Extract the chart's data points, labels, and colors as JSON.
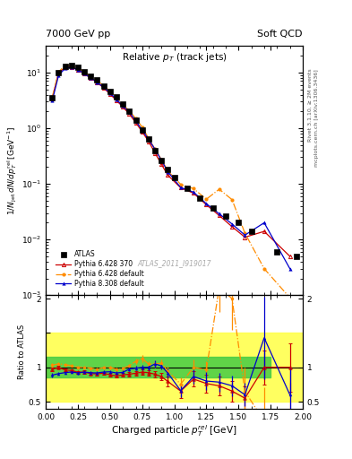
{
  "title_left": "7000 GeV pp",
  "title_right": "Soft QCD",
  "plot_title": "Relative $p_T$ (track jets)",
  "xlabel": "Charged particle $p_T^{rel}$ [GeV]",
  "ylabel_main": "$1/N_{jet}\\,dN/dp_T^{rel}\\,[GeV^{-1}]$",
  "ylabel_ratio": "Ratio to ATLAS",
  "right_label1": "Rivet 3.1.10, ≥ 2M events",
  "right_label2": "mcplots.cern.ch [arXiv:1306.3436]",
  "watermark": "ATLAS_2011_I919017",
  "atlas_x": [
    0.05,
    0.1,
    0.15,
    0.2,
    0.25,
    0.3,
    0.35,
    0.4,
    0.45,
    0.5,
    0.55,
    0.6,
    0.65,
    0.7,
    0.75,
    0.8,
    0.85,
    0.9,
    0.95,
    1.0,
    1.1,
    1.2,
    1.3,
    1.4,
    1.5,
    1.6,
    1.8,
    1.95
  ],
  "atlas_y": [
    3.5,
    9.8,
    12.8,
    13.2,
    12.2,
    10.2,
    8.7,
    7.3,
    5.8,
    4.6,
    3.6,
    2.7,
    2.0,
    1.38,
    0.93,
    0.63,
    0.4,
    0.26,
    0.18,
    0.13,
    0.082,
    0.055,
    0.037,
    0.026,
    0.02,
    0.014,
    0.006,
    0.005
  ],
  "py6_370_x": [
    0.05,
    0.1,
    0.15,
    0.2,
    0.25,
    0.3,
    0.35,
    0.4,
    0.45,
    0.5,
    0.55,
    0.6,
    0.65,
    0.7,
    0.75,
    0.8,
    0.85,
    0.9,
    0.95,
    1.05,
    1.15,
    1.25,
    1.35,
    1.45,
    1.55,
    1.7,
    1.9
  ],
  "py6_370_y": [
    3.4,
    9.8,
    12.3,
    12.6,
    11.3,
    9.5,
    7.9,
    6.6,
    5.3,
    4.1,
    3.15,
    2.4,
    1.8,
    1.26,
    0.865,
    0.58,
    0.36,
    0.225,
    0.143,
    0.085,
    0.068,
    0.042,
    0.027,
    0.017,
    0.011,
    0.014,
    0.005
  ],
  "py6_def_x": [
    0.05,
    0.1,
    0.15,
    0.2,
    0.25,
    0.3,
    0.35,
    0.4,
    0.45,
    0.5,
    0.55,
    0.6,
    0.65,
    0.7,
    0.75,
    0.8,
    0.85,
    0.9,
    0.95,
    1.05,
    1.15,
    1.25,
    1.35,
    1.45,
    1.55,
    1.7,
    1.9
  ],
  "py6_def_y": [
    3.6,
    10.3,
    13.3,
    13.5,
    12.2,
    10.2,
    8.6,
    7.1,
    5.8,
    4.6,
    3.5,
    2.65,
    2.05,
    1.5,
    1.05,
    0.66,
    0.42,
    0.275,
    0.17,
    0.098,
    0.082,
    0.053,
    0.08,
    0.052,
    0.013,
    0.003,
    0.0009
  ],
  "py8_def_x": [
    0.05,
    0.1,
    0.15,
    0.2,
    0.25,
    0.3,
    0.35,
    0.4,
    0.45,
    0.5,
    0.55,
    0.6,
    0.65,
    0.7,
    0.75,
    0.8,
    0.85,
    0.9,
    0.95,
    1.05,
    1.15,
    1.25,
    1.35,
    1.45,
    1.55,
    1.7,
    1.9
  ],
  "py8_def_y": [
    3.1,
    8.9,
    11.8,
    12.3,
    11.2,
    9.5,
    8.0,
    6.7,
    5.4,
    4.3,
    3.3,
    2.5,
    1.95,
    1.36,
    0.93,
    0.63,
    0.42,
    0.265,
    0.165,
    0.086,
    0.071,
    0.044,
    0.029,
    0.019,
    0.012,
    0.02,
    0.003
  ],
  "ratio_py6_370_x": [
    0.05,
    0.1,
    0.15,
    0.2,
    0.25,
    0.3,
    0.35,
    0.4,
    0.45,
    0.5,
    0.55,
    0.6,
    0.65,
    0.7,
    0.75,
    0.8,
    0.85,
    0.9,
    0.95,
    1.05,
    1.15,
    1.25,
    1.35,
    1.45,
    1.55,
    1.7,
    1.9
  ],
  "ratio_py6_370": [
    0.97,
    1.0,
    0.96,
    0.955,
    0.926,
    0.931,
    0.908,
    0.904,
    0.914,
    0.891,
    0.875,
    0.889,
    0.9,
    0.913,
    0.93,
    0.921,
    0.9,
    0.865,
    0.794,
    0.654,
    0.829,
    0.764,
    0.73,
    0.654,
    0.55,
    1.0,
    1.0
  ],
  "ratio_py6_def_x": [
    0.05,
    0.1,
    0.15,
    0.2,
    0.25,
    0.3,
    0.35,
    0.4,
    0.45,
    0.5,
    0.55,
    0.6,
    0.65,
    0.7,
    0.75,
    0.8,
    0.85,
    0.9,
    0.95,
    1.05,
    1.15,
    1.25,
    1.35,
    1.45,
    1.55,
    1.7,
    1.9
  ],
  "ratio_py6_def": [
    1.03,
    1.051,
    1.039,
    1.023,
    1.0,
    1.0,
    0.989,
    0.973,
    0.997,
    1.0,
    0.972,
    0.981,
    1.025,
    1.087,
    1.129,
    1.048,
    1.05,
    1.058,
    0.944,
    0.754,
    1.0,
    0.964,
    2.16,
    2.0,
    0.65,
    0.214,
    0.18
  ],
  "ratio_py8_def_x": [
    0.05,
    0.1,
    0.15,
    0.2,
    0.25,
    0.3,
    0.35,
    0.4,
    0.45,
    0.5,
    0.55,
    0.6,
    0.65,
    0.7,
    0.75,
    0.8,
    0.85,
    0.9,
    0.95,
    1.05,
    1.15,
    1.25,
    1.35,
    1.45,
    1.55,
    1.7,
    1.9
  ],
  "ratio_py8_def": [
    0.886,
    0.908,
    0.922,
    0.932,
    0.918,
    0.931,
    0.92,
    0.918,
    0.931,
    0.935,
    0.917,
    0.926,
    0.975,
    0.986,
    1.0,
    1.0,
    1.05,
    1.019,
    0.917,
    0.66,
    0.866,
    0.8,
    0.784,
    0.731,
    0.6,
    1.429,
    0.6
  ],
  "ratio_err_py6_370": [
    0.03,
    0.02,
    0.02,
    0.02,
    0.02,
    0.02,
    0.02,
    0.02,
    0.02,
    0.025,
    0.025,
    0.025,
    0.03,
    0.03,
    0.04,
    0.04,
    0.05,
    0.055,
    0.07,
    0.1,
    0.11,
    0.13,
    0.14,
    0.15,
    0.17,
    0.25,
    0.35
  ],
  "ratio_err_py6_def": [
    0.03,
    0.02,
    0.02,
    0.02,
    0.02,
    0.02,
    0.02,
    0.02,
    0.02,
    0.025,
    0.025,
    0.025,
    0.03,
    0.04,
    0.05,
    0.04,
    0.05,
    0.06,
    0.07,
    0.1,
    0.12,
    0.13,
    0.35,
    0.45,
    0.35,
    0.5,
    0.6
  ],
  "ratio_err_py8_def": [
    0.03,
    0.02,
    0.02,
    0.02,
    0.02,
    0.02,
    0.02,
    0.02,
    0.02,
    0.025,
    0.025,
    0.025,
    0.03,
    0.03,
    0.04,
    0.04,
    0.05,
    0.055,
    0.07,
    0.1,
    0.11,
    0.13,
    0.14,
    0.15,
    0.17,
    0.6,
    0.38
  ],
  "atlas_color": "#000000",
  "py6_370_color": "#cc0000",
  "py6_def_color": "#ff8c00",
  "py8_def_color": "#0000cc",
  "band_yellow": "#ffff44",
  "band_green": "#44cc44",
  "xlim": [
    0.0,
    2.0
  ],
  "ylim_main_lo": 0.001,
  "ylim_main_hi": 30.0,
  "ylim_ratio_lo": 0.4,
  "ylim_ratio_hi": 2.05
}
